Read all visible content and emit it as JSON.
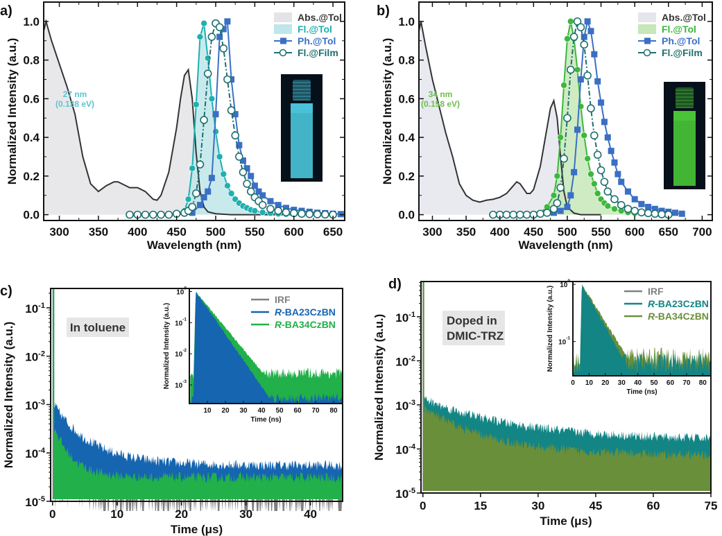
{
  "chart_data": [
    {
      "id": "a",
      "type": "line",
      "panel_label": "a)",
      "xlabel": "Wavelength (nm)",
      "ylabel": "Normalized Intensity (a.u.)",
      "xlim": [
        280,
        665
      ],
      "ylim": [
        -0.03,
        1.1
      ],
      "xticks": [
        300,
        350,
        400,
        450,
        500,
        550,
        600,
        650
      ],
      "yticks": [
        "0.0",
        "0.2",
        "0.4",
        "0.6",
        "0.8",
        "1.0"
      ],
      "annotation": {
        "line1": "27 nm",
        "line2": "(0.138 eV)",
        "color": "#5cc4d0"
      },
      "inset_photo": {
        "description": "vial-blue-emission",
        "color": "#4fd0e8"
      },
      "legend": {
        "position": "top-right"
      },
      "series": [
        {
          "name": "Abs.@Tol",
          "color": "#333333",
          "fill": "#e4e4e8",
          "style": "filled-line",
          "x": [
            280,
            283,
            290,
            300,
            310,
            320,
            330,
            340,
            350,
            360,
            370,
            375,
            380,
            390,
            400,
            410,
            420,
            425,
            430,
            440,
            450,
            455,
            460,
            465,
            470,
            475,
            480,
            485,
            490,
            500,
            520,
            550,
            600
          ],
          "y": [
            0.95,
            1.0,
            0.9,
            0.78,
            0.66,
            0.52,
            0.3,
            0.16,
            0.12,
            0.15,
            0.17,
            0.17,
            0.16,
            0.14,
            0.14,
            0.12,
            0.08,
            0.075,
            0.1,
            0.22,
            0.45,
            0.6,
            0.72,
            0.75,
            0.6,
            0.32,
            0.12,
            0.04,
            0.015,
            0.005,
            0.0,
            0.0,
            0.0
          ]
        },
        {
          "name": "Fl.@Tol",
          "color": "#1fb0b0",
          "fill": "#bfe6ea",
          "style": "filled-line-markers",
          "marker": "circle-filled",
          "x": [
            460,
            465,
            470,
            475,
            480,
            485,
            490,
            495,
            500,
            505,
            510,
            515,
            520,
            525,
            530,
            535,
            540,
            545,
            550,
            560,
            570,
            580,
            590,
            600,
            620,
            650
          ],
          "y": [
            0.02,
            0.08,
            0.24,
            0.57,
            0.92,
            0.99,
            0.81,
            0.6,
            0.43,
            0.3,
            0.21,
            0.15,
            0.11,
            0.08,
            0.06,
            0.045,
            0.035,
            0.025,
            0.02,
            0.012,
            0.008,
            0.005,
            0.003,
            0.002,
            0.001,
            0.0
          ]
        },
        {
          "name": "Ph.@Tol",
          "color": "#3a6fc4",
          "style": "line-markers",
          "marker": "square-filled",
          "x": [
            470,
            480,
            485,
            490,
            495,
            500,
            505,
            510,
            515,
            520,
            525,
            530,
            535,
            540,
            545,
            550,
            555,
            560,
            570,
            580,
            590,
            600,
            610,
            620,
            630,
            640,
            650,
            660
          ],
          "y": [
            0.01,
            0.05,
            0.09,
            0.12,
            0.19,
            0.52,
            0.92,
            0.96,
            1.0,
            0.7,
            0.52,
            0.36,
            0.28,
            0.24,
            0.2,
            0.15,
            0.12,
            0.1,
            0.07,
            0.05,
            0.035,
            0.025,
            0.02,
            0.015,
            0.01,
            0.008,
            0.005,
            0.003
          ]
        },
        {
          "name": "Fl.@Film",
          "color": "#1e6f6f",
          "style": "dashdot-line-markers",
          "marker": "circle-open",
          "x": [
            390,
            400,
            410,
            420,
            430,
            440,
            450,
            460,
            465,
            470,
            475,
            480,
            485,
            490,
            495,
            500,
            505,
            510,
            515,
            520,
            525,
            530,
            535,
            540,
            545,
            550,
            555,
            560,
            570,
            580,
            590,
            600,
            610,
            620,
            630,
            640,
            650
          ],
          "y": [
            0.0,
            0.0,
            0.0,
            0.0,
            0.0,
            0.0,
            0.005,
            0.01,
            0.02,
            0.04,
            0.11,
            0.26,
            0.49,
            0.73,
            0.92,
            0.99,
            0.97,
            0.86,
            0.7,
            0.54,
            0.41,
            0.3,
            0.22,
            0.16,
            0.12,
            0.09,
            0.07,
            0.05,
            0.03,
            0.02,
            0.012,
            0.008,
            0.005,
            0.003,
            0.002,
            0.001,
            0.0
          ]
        }
      ]
    },
    {
      "id": "b",
      "type": "line",
      "panel_label": "b)",
      "xlabel": "Wavelength (nm)",
      "ylabel": "Normalized Intensity (a.u.)",
      "xlim": [
        280,
        715
      ],
      "ylim": [
        -0.03,
        1.1
      ],
      "xticks": [
        300,
        350,
        400,
        450,
        500,
        550,
        600,
        650,
        700
      ],
      "yticks": [
        "0.0",
        "0.2",
        "0.4",
        "0.6",
        "0.8",
        "1.0"
      ],
      "annotation": {
        "line1": "34 nm",
        "line2": "(0.158 eV)",
        "color": "#6cc04a"
      },
      "inset_photo": {
        "description": "vial-green-emission",
        "color": "#4fd23a"
      },
      "legend": {
        "position": "top-right"
      },
      "series": [
        {
          "name": "Abs.@Tol",
          "color": "#333333",
          "fill": "#e4e6ec",
          "style": "filled-line",
          "x": [
            280,
            283,
            290,
            300,
            310,
            320,
            330,
            340,
            350,
            360,
            370,
            380,
            390,
            400,
            410,
            420,
            425,
            430,
            440,
            445,
            450,
            460,
            470,
            475,
            480,
            485,
            490,
            495,
            500,
            510,
            520,
            550
          ],
          "y": [
            0.95,
            1.0,
            0.87,
            0.7,
            0.56,
            0.42,
            0.3,
            0.16,
            0.1,
            0.075,
            0.065,
            0.075,
            0.08,
            0.09,
            0.11,
            0.15,
            0.17,
            0.16,
            0.11,
            0.11,
            0.13,
            0.25,
            0.45,
            0.55,
            0.59,
            0.5,
            0.3,
            0.12,
            0.04,
            0.008,
            0.0,
            0.0
          ]
        },
        {
          "name": "Fl.@Tol",
          "color": "#3cb83c",
          "fill": "#c6e7b8",
          "style": "filled-line-markers",
          "marker": "circle-filled",
          "x": [
            460,
            470,
            480,
            485,
            490,
            495,
            500,
            505,
            510,
            515,
            520,
            525,
            530,
            535,
            540,
            545,
            550,
            555,
            560,
            570,
            580,
            590,
            600,
            620,
            650
          ],
          "y": [
            0.01,
            0.04,
            0.1,
            0.2,
            0.4,
            0.67,
            0.91,
            1.0,
            0.91,
            0.75,
            0.56,
            0.41,
            0.29,
            0.21,
            0.16,
            0.11,
            0.08,
            0.06,
            0.045,
            0.03,
            0.02,
            0.012,
            0.008,
            0.003,
            0.0
          ]
        },
        {
          "name": "Ph.@Tol",
          "color": "#3a6fc4",
          "style": "line-markers",
          "marker": "square-filled",
          "x": [
            480,
            490,
            500,
            505,
            510,
            515,
            520,
            525,
            530,
            535,
            540,
            545,
            550,
            555,
            560,
            565,
            570,
            575,
            580,
            590,
            600,
            610,
            620,
            630,
            640,
            650,
            660,
            670
          ],
          "y": [
            0.01,
            0.02,
            0.04,
            0.1,
            0.22,
            0.44,
            0.7,
            0.92,
            1.0,
            0.95,
            0.83,
            0.69,
            0.58,
            0.48,
            0.4,
            0.33,
            0.27,
            0.21,
            0.17,
            0.12,
            0.08,
            0.055,
            0.04,
            0.03,
            0.02,
            0.015,
            0.01,
            0.005
          ]
        },
        {
          "name": "Fl.@Film",
          "color": "#1e6f6f",
          "style": "dashdot-line-markers",
          "marker": "circle-open",
          "x": [
            390,
            400,
            410,
            420,
            430,
            440,
            450,
            460,
            470,
            480,
            485,
            490,
            495,
            500,
            505,
            510,
            515,
            520,
            525,
            530,
            535,
            540,
            545,
            550,
            555,
            560,
            570,
            580,
            590,
            600,
            610,
            620,
            630,
            640,
            650
          ],
          "y": [
            0.0,
            0.0,
            0.0,
            0.0,
            0.0,
            0.0,
            0.0,
            0.005,
            0.01,
            0.03,
            0.06,
            0.14,
            0.29,
            0.5,
            0.75,
            0.92,
            1.0,
            0.97,
            0.88,
            0.72,
            0.55,
            0.41,
            0.31,
            0.23,
            0.17,
            0.12,
            0.08,
            0.05,
            0.03,
            0.02,
            0.012,
            0.008,
            0.005,
            0.002,
            0.0
          ]
        }
      ]
    },
    {
      "id": "c",
      "type": "line",
      "scale": "log-y",
      "panel_label": "c)",
      "xlabel": "Time (μs)",
      "ylabel": "Normalized Intensity (a.u.)",
      "xlim": [
        -0.3,
        45
      ],
      "ylim_exp": [
        -5,
        -0.6
      ],
      "xticks": [
        0,
        10,
        20,
        30,
        40
      ],
      "yticks": [
        "10-5",
        "10-4",
        "10-3",
        "10-2",
        "10-1"
      ],
      "text_box": "In toluene",
      "legend": {
        "position": "top-right"
      },
      "series": [
        {
          "name": "IRF",
          "color": "#808080",
          "noise_floor_exp": -4.9,
          "decay": "instant"
        },
        {
          "name": "R-BA23CzBN",
          "color": "#1565b0",
          "initial_exp": -3.0,
          "tau_us": 6,
          "plateau_exp": -4.3
        },
        {
          "name": "R-BA34CzBN",
          "color": "#22b04a",
          "initial_exp": -3.4,
          "tau_us": 3,
          "plateau_exp": -4.55
        }
      ],
      "inset": {
        "xlabel": "Time (ns)",
        "ylabel": "Normalized Intensity (a.u.)",
        "xlim": [
          0,
          85
        ],
        "xticks": [
          10,
          20,
          30,
          40,
          50,
          60,
          70,
          80
        ],
        "yticks": [
          "10-3",
          "10-2",
          "10-1",
          "100"
        ],
        "ylim_exp": [
          -3.6,
          0.1
        ],
        "series": [
          {
            "name": "R-BA23CzBN",
            "color": "#1565b0",
            "peak_ns": 3.5,
            "tau_ns": 5.2,
            "floor_exp": -3.6
          },
          {
            "name": "R-BA34CzBN",
            "color": "#22b04a",
            "peak_ns": 3.5,
            "tau_ns": 6.2,
            "floor_exp": -2.8
          }
        ]
      }
    },
    {
      "id": "d",
      "type": "line",
      "scale": "log-y",
      "panel_label": "d)",
      "xlabel": "Time (μs)",
      "ylabel": "Normalized Intensity (a.u.)",
      "xlim": [
        -0.5,
        75
      ],
      "ylim_exp": [
        -5,
        -0.2
      ],
      "xticks": [
        0,
        15,
        30,
        45,
        60,
        75
      ],
      "yticks": [
        "10-5",
        "10-4",
        "10-3",
        "10-2",
        "10-1"
      ],
      "text_box_line1": "Doped in",
      "text_box_line2": "DMIC-TRZ",
      "legend": {
        "position": "top-right"
      },
      "series": [
        {
          "name": "IRF",
          "color": "#808080",
          "noise_floor_exp": -4.6,
          "decay": "instant"
        },
        {
          "name": "R-BA23CzBN",
          "color": "#138585",
          "initial_exp": -2.9,
          "tau_us": 25,
          "plateau_exp": -3.85
        },
        {
          "name": "R-BA34CzBN",
          "color": "#6a8f3a",
          "initial_exp": -3.1,
          "tau_us": 18,
          "plateau_exp": -4.2
        }
      ],
      "inset": {
        "xlabel": "Time (ns)",
        "ylabel": "Normalized Intensity (a.u.)",
        "xlim": [
          0,
          85
        ],
        "xticks": [
          0,
          10,
          20,
          30,
          40,
          50,
          60,
          70,
          80
        ],
        "yticks": [
          "10-1",
          "100"
        ],
        "ylim_exp": [
          -1.6,
          0.05
        ],
        "series": [
          {
            "name": "R-BA23CzBN",
            "color": "#138585",
            "peak_ns": 5.5,
            "tau_ns": 8.5,
            "floor_exp": -1.55
          },
          {
            "name": "R-BA34CzBN",
            "color": "#6a8f3a",
            "peak_ns": 5.5,
            "tau_ns": 9.5,
            "floor_exp": -1.45
          }
        ]
      }
    }
  ]
}
